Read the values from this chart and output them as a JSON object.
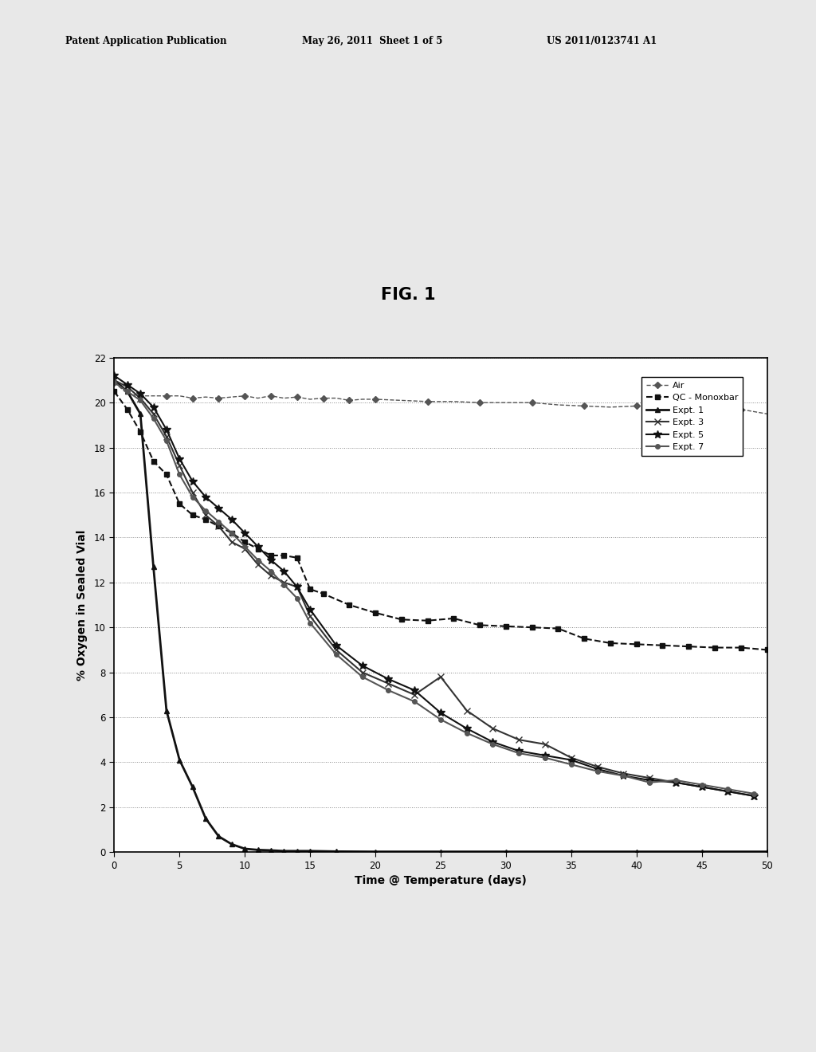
{
  "title": "FIG. 1",
  "xlabel": "Time @ Temperature (days)",
  "ylabel": "% Oxygen in Sealed Vial",
  "xlim": [
    0,
    50
  ],
  "ylim": [
    0,
    22
  ],
  "yticks": [
    0,
    2,
    4,
    6,
    8,
    10,
    12,
    14,
    16,
    18,
    20,
    22
  ],
  "xticks": [
    0,
    5,
    10,
    15,
    20,
    25,
    30,
    35,
    40,
    45,
    50
  ],
  "header_left": "Patent Application Publication",
  "header_mid": "May 26, 2011  Sheet 1 of 5",
  "header_right": "US 2011/0123741 A1",
  "series": {
    "Air": {
      "x": [
        0,
        1,
        2,
        3,
        4,
        5,
        6,
        7,
        8,
        9,
        10,
        11,
        12,
        13,
        14,
        15,
        16,
        17,
        18,
        19,
        20,
        22,
        24,
        26,
        28,
        30,
        32,
        34,
        36,
        38,
        40,
        42,
        44,
        46,
        48,
        50
      ],
      "y": [
        20.9,
        20.4,
        20.3,
        20.3,
        20.3,
        20.3,
        20.2,
        20.25,
        20.2,
        20.25,
        20.3,
        20.2,
        20.3,
        20.2,
        20.25,
        20.15,
        20.2,
        20.2,
        20.1,
        20.15,
        20.15,
        20.1,
        20.05,
        20.05,
        20.0,
        20.0,
        20.0,
        19.9,
        19.85,
        19.8,
        19.85,
        19.8,
        19.7,
        19.65,
        19.7,
        19.5
      ],
      "color": "#555555",
      "linestyle": "--",
      "marker": "D",
      "markersize": 4,
      "linewidth": 1.0,
      "markevery": 2
    },
    "QC - Monoxbar": {
      "x": [
        0,
        1,
        2,
        3,
        4,
        5,
        6,
        7,
        8,
        9,
        10,
        11,
        12,
        13,
        14,
        15,
        16,
        18,
        20,
        22,
        24,
        26,
        28,
        30,
        32,
        34,
        36,
        38,
        40,
        42,
        44,
        46,
        48,
        50
      ],
      "y": [
        20.5,
        19.7,
        18.7,
        17.4,
        16.8,
        15.5,
        15.0,
        14.8,
        14.5,
        14.2,
        13.8,
        13.5,
        13.2,
        13.2,
        13.1,
        11.7,
        11.5,
        11.0,
        10.65,
        10.35,
        10.3,
        10.4,
        10.1,
        10.05,
        10.0,
        9.95,
        9.5,
        9.3,
        9.25,
        9.2,
        9.15,
        9.1,
        9.1,
        9.0
      ],
      "color": "#111111",
      "linestyle": "--",
      "marker": "s",
      "markersize": 5,
      "linewidth": 1.5,
      "markevery": 1
    },
    "Expt. 1": {
      "x": [
        0,
        1,
        2,
        3,
        4,
        5,
        6,
        7,
        8,
        9,
        10,
        11,
        12,
        13,
        14,
        15,
        17,
        20,
        25,
        30,
        35,
        40,
        45,
        50
      ],
      "y": [
        21.0,
        20.5,
        19.5,
        12.7,
        6.3,
        4.1,
        2.9,
        1.5,
        0.7,
        0.35,
        0.15,
        0.1,
        0.08,
        0.05,
        0.05,
        0.05,
        0.03,
        0.02,
        0.02,
        0.02,
        0.02,
        0.02,
        0.02,
        0.02
      ],
      "color": "#111111",
      "linestyle": "-",
      "marker": "^",
      "markersize": 5,
      "linewidth": 2.0,
      "markevery": 1
    },
    "Expt. 3": {
      "x": [
        0,
        1,
        2,
        3,
        4,
        5,
        6,
        7,
        8,
        9,
        10,
        11,
        12,
        13,
        14,
        15,
        17,
        19,
        21,
        23,
        25,
        27,
        29,
        31,
        33,
        35,
        37,
        39,
        41,
        43,
        45,
        47,
        49
      ],
      "y": [
        21.0,
        20.7,
        20.2,
        19.5,
        18.5,
        17.2,
        16.0,
        15.0,
        14.5,
        13.8,
        13.5,
        12.8,
        12.3,
        12.0,
        11.8,
        10.5,
        9.0,
        8.0,
        7.5,
        7.0,
        7.8,
        6.3,
        5.5,
        5.0,
        4.8,
        4.2,
        3.8,
        3.5,
        3.3,
        3.1,
        2.9,
        2.7,
        2.5
      ],
      "color": "#333333",
      "linestyle": "-",
      "marker": "x",
      "markersize": 6,
      "linewidth": 1.5,
      "markevery": 1
    },
    "Expt. 5": {
      "x": [
        0,
        1,
        2,
        3,
        4,
        5,
        6,
        7,
        8,
        9,
        10,
        11,
        12,
        13,
        14,
        15,
        17,
        19,
        21,
        23,
        25,
        27,
        29,
        31,
        33,
        35,
        37,
        39,
        41,
        43,
        45,
        47,
        49
      ],
      "y": [
        21.2,
        20.8,
        20.4,
        19.8,
        18.8,
        17.5,
        16.5,
        15.8,
        15.3,
        14.8,
        14.2,
        13.6,
        13.0,
        12.5,
        11.8,
        10.8,
        9.2,
        8.3,
        7.7,
        7.2,
        6.2,
        5.5,
        4.9,
        4.5,
        4.3,
        4.1,
        3.7,
        3.4,
        3.2,
        3.1,
        2.9,
        2.7,
        2.5
      ],
      "color": "#111111",
      "linestyle": "-",
      "marker": "*",
      "markersize": 7,
      "linewidth": 1.5,
      "markevery": 1
    },
    "Expt. 7": {
      "x": [
        0,
        1,
        2,
        3,
        4,
        5,
        6,
        7,
        8,
        9,
        10,
        11,
        12,
        13,
        14,
        15,
        17,
        19,
        21,
        23,
        25,
        27,
        29,
        31,
        33,
        35,
        37,
        39,
        41,
        43,
        45,
        47,
        49
      ],
      "y": [
        20.9,
        20.5,
        20.1,
        19.3,
        18.3,
        16.8,
        15.8,
        15.2,
        14.7,
        14.2,
        13.6,
        13.0,
        12.5,
        11.9,
        11.3,
        10.2,
        8.8,
        7.8,
        7.2,
        6.7,
        5.9,
        5.3,
        4.8,
        4.4,
        4.2,
        3.9,
        3.6,
        3.4,
        3.1,
        3.2,
        3.0,
        2.8,
        2.6
      ],
      "color": "#555555",
      "linestyle": "-",
      "marker": "o",
      "markersize": 4,
      "linewidth": 1.5,
      "markevery": 1
    }
  },
  "background_color": "#ffffff",
  "figure_bg": "#f0f0f0"
}
